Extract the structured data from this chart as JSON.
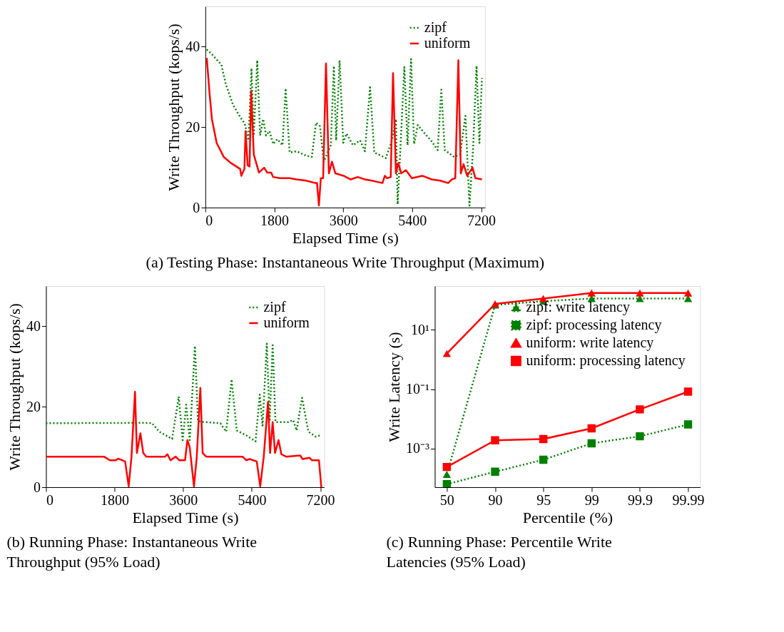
{
  "chart_data": [
    {
      "type": "line",
      "title": "(a) Testing Phase: Instantaneous Write Throughput (Maximum)",
      "xlabel": "Elapsed Time (s)",
      "ylabel": "Write Throughput (kops/s)",
      "xlim": [
        0,
        7300
      ],
      "ylim": [
        0,
        50
      ],
      "xticks": [
        0,
        1800,
        3600,
        5400,
        7200
      ],
      "yticks": [
        0,
        20,
        40
      ],
      "legend": "top right",
      "series": [
        {
          "name": "zipf",
          "color": "#008000",
          "line_style": "dotted",
          "x": [
            37,
            172,
            420,
            540,
            725,
            910,
            1030,
            1125,
            1205,
            1265,
            1355,
            1430,
            1510,
            1585,
            1675,
            1770,
            1880,
            2015,
            2095,
            2200,
            2380,
            2630,
            2780,
            2890,
            2995,
            3090,
            3275,
            3355,
            3415,
            3505,
            3600,
            3685,
            3855,
            4040,
            4165,
            4300,
            4410,
            4715,
            4870,
            4975,
            5020,
            5085,
            5195,
            5280,
            5370,
            5450,
            5545,
            5730,
            5915,
            6065,
            6160,
            6250,
            6495,
            6650,
            6790,
            6895,
            6990,
            7080,
            7155,
            7220
          ],
          "values": [
            39.3,
            38.1,
            35.5,
            30.5,
            25.5,
            22.5,
            20.8,
            16.7,
            34.6,
            17.9,
            36.6,
            17.9,
            22,
            17.9,
            19,
            15.8,
            17,
            15.5,
            29.6,
            13.7,
            14,
            12.9,
            12.6,
            21.1,
            20.2,
            11.4,
            15.5,
            35.2,
            16.7,
            36.6,
            16.1,
            18.4,
            15.5,
            16.7,
            14,
            29.9,
            13.7,
            12.3,
            16.7,
            22,
            0.8,
            13.2,
            34.9,
            15.5,
            36.9,
            15.8,
            20.5,
            18.4,
            16.4,
            14.3,
            29.3,
            14.3,
            12.6,
            13.2,
            22.8,
            0.5,
            14.9,
            35.2,
            16.1,
            32.2
          ]
        },
        {
          "name": "uniform",
          "color": "#ff0000",
          "line_style": "solid",
          "x": [
            37,
            110,
            172,
            295,
            480,
            663,
            909,
            939,
            1020,
            1050,
            1105,
            1154,
            1197,
            1265,
            1400,
            1535,
            1615,
            1720,
            1770,
            1950,
            2200,
            2380,
            2630,
            2875,
            2915,
            2965,
            3015,
            3075,
            3150,
            3225,
            3305,
            3395,
            3610,
            3795,
            3980,
            4165,
            4350,
            4625,
            4685,
            4745,
            4840,
            4900,
            4975,
            5035,
            5115,
            5235,
            5390,
            5665,
            5910,
            6130,
            6340,
            6435,
            6525,
            6605,
            6670,
            6740,
            6835,
            6975,
            7050,
            7220
          ],
          "values": [
            37.2,
            28.4,
            22,
            16.1,
            12.6,
            11.1,
            9.6,
            7.9,
            9.6,
            19,
            10.5,
            10.2,
            29,
            13.2,
            8.7,
            9.9,
            8.7,
            8.7,
            7.6,
            7.3,
            7.3,
            7,
            6.7,
            6.1,
            6.1,
            0.5,
            7.3,
            7.3,
            35.8,
            8.5,
            11.4,
            8.5,
            7.9,
            7,
            7.6,
            7,
            6.7,
            6.1,
            7.9,
            7.3,
            7.6,
            33.4,
            8.5,
            11.1,
            8.5,
            9.3,
            7.3,
            7.9,
            7,
            6.7,
            6.1,
            7,
            7.3,
            36.6,
            8.5,
            10.8,
            7.9,
            9.9,
            7.3,
            7
          ]
        }
      ]
    },
    {
      "type": "line",
      "title": "(b) Running Phase: Instantaneous Write Throughput (95% Load)",
      "xlabel": "Elapsed Time (s)",
      "ylabel": "Write Throughput (kops/s)",
      "xlim": [
        0,
        7300
      ],
      "ylim": [
        0,
        50
      ],
      "xticks": [
        0,
        1800,
        3600,
        5400,
        7200
      ],
      "yticks": [
        0,
        20,
        40
      ],
      "legend": "top right",
      "series": [
        {
          "name": "zipf",
          "color": "#008000",
          "line_style": "dotted",
          "x": [
            0,
            2600,
            2786,
            2971,
            3310,
            3483,
            3587,
            3680,
            3772,
            3908,
            3988,
            4142,
            4574,
            4728,
            4870,
            5005,
            5252,
            5499,
            5609,
            5683,
            5794,
            5868,
            5948,
            6022,
            6361,
            6484,
            6577,
            6719,
            6885,
            7070,
            7212
          ],
          "values": [
            15.9,
            16,
            15.9,
            13.8,
            12,
            22.5,
            11.7,
            20.5,
            11.7,
            35.1,
            16.4,
            16.2,
            15.9,
            13.8,
            26.8,
            14.1,
            12.9,
            11.4,
            23,
            15.3,
            35.7,
            16.4,
            35.3,
            16.2,
            16.2,
            16.7,
            14.1,
            22.2,
            13.8,
            12.6,
            12.9
          ]
        },
        {
          "name": "uniform",
          "color": "#ff0000",
          "line_style": "solid",
          "x": [
            0,
            1523,
            1677,
            1831,
            1892,
            2077,
            2170,
            2244,
            2336,
            2386,
            2478,
            2552,
            2632,
            3125,
            3187,
            3267,
            3403,
            3495,
            3649,
            3711,
            3772,
            3883,
            3957,
            4050,
            4111,
            4204,
            5159,
            5252,
            5345,
            5530,
            5622,
            5714,
            5825,
            5880,
            5948,
            6010,
            6102,
            6176,
            6300,
            6669,
            6731,
            6916,
            6978,
            7163,
            7224
          ],
          "values": [
            7.6,
            7.6,
            6.7,
            6.7,
            7.1,
            6.4,
            0.2,
            7.6,
            23.7,
            8.5,
            13.4,
            8.5,
            7.6,
            7.6,
            8.2,
            6.7,
            7.6,
            6.7,
            6.7,
            11.7,
            9.9,
            0.2,
            7.6,
            24.7,
            8.5,
            7.6,
            7.6,
            6.7,
            7,
            6.4,
            0.2,
            7.6,
            21.2,
            8.5,
            16.2,
            8.5,
            11.7,
            8.2,
            7.6,
            7.9,
            7,
            7.3,
            6.7,
            6.7,
            0
          ]
        }
      ]
    },
    {
      "type": "line",
      "title": "(c) Running Phase: Percentile Write Latencies (95% Load)",
      "xlabel": "Percentile (%)",
      "ylabel": "Write Latency (s)",
      "categories": [
        "50",
        "90",
        "95",
        "99",
        "99.9",
        "99.99"
      ],
      "log": "y",
      "ylim": [
        5e-05,
        300
      ],
      "yticks": [
        {
          "value": 10,
          "label": "10¹"
        },
        {
          "value": 0.1,
          "label": "10⁻¹"
        },
        {
          "value": 0.001,
          "label": "10⁻³"
        }
      ],
      "legend": "top right",
      "series": [
        {
          "name": "zipf: write latency",
          "color": "#008000",
          "line_style": "dotted",
          "marker": "triangle",
          "values": [
            0.000135,
            69,
            93,
            114,
            114,
            114
          ]
        },
        {
          "name": "zipf: processing latency",
          "color": "#008000",
          "line_style": "dotted",
          "marker": "square",
          "values": [
            6.3e-05,
            0.000166,
            0.00042,
            0.0015,
            0.0026,
            0.0065
          ]
        },
        {
          "name": "uniform: write latency",
          "color": "#ff0000",
          "line_style": "solid",
          "marker": "triangle",
          "values": [
            1.6,
            75,
            114,
            175,
            175,
            175
          ]
        },
        {
          "name": "uniform: processing latency",
          "color": "#ff0000",
          "line_style": "solid",
          "marker": "square",
          "values": [
            0.00024,
            0.0019,
            0.0021,
            0.0048,
            0.021,
            0.083
          ]
        }
      ]
    }
  ]
}
